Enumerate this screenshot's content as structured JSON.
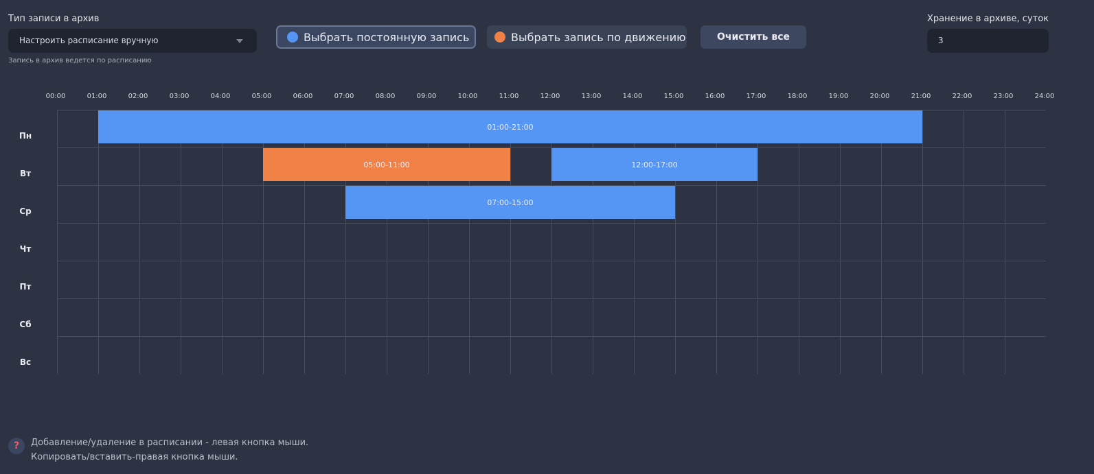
{
  "archive_type": {
    "label": "Тип записи в архив",
    "value": "Настроить расписание вручную",
    "hint": "Запись в архив ведется по расписанию"
  },
  "buttons": {
    "continuous": "Выбрать постоянную запись",
    "motion": "Выбрать запись по движению",
    "clear": "Очистить все"
  },
  "retention": {
    "label": "Хранение в архиве, суток",
    "value": "3"
  },
  "colors": {
    "continuous": "#5596f5",
    "motion": "#f08248"
  },
  "hours": [
    "00:00",
    "01:00",
    "02:00",
    "03:00",
    "04:00",
    "05:00",
    "06:00",
    "07:00",
    "08:00",
    "09:00",
    "10:00",
    "11:00",
    "12:00",
    "13:00",
    "14:00",
    "15:00",
    "16:00",
    "17:00",
    "18:00",
    "19:00",
    "20:00",
    "21:00",
    "22:00",
    "23:00",
    "24:00"
  ],
  "days": [
    "Пн",
    "Вт",
    "Ср",
    "Чт",
    "Пт",
    "Сб",
    "Вс"
  ],
  "schedule": [
    {
      "day": 0,
      "start": 1,
      "end": 21,
      "type": "continuous",
      "label": "01:00-21:00"
    },
    {
      "day": 1,
      "start": 5,
      "end": 11,
      "type": "motion",
      "label": "05:00-11:00"
    },
    {
      "day": 1,
      "start": 12,
      "end": 17,
      "type": "continuous",
      "label": "12:00-17:00"
    },
    {
      "day": 2,
      "start": 7,
      "end": 15,
      "type": "continuous",
      "label": "07:00-15:00"
    }
  ],
  "help": {
    "icon": "question-icon",
    "line1": "Добавление/удаление в расписании - левая кнопка мыши.",
    "line2": "Копировать/вставить-правая кнопка мыши."
  }
}
